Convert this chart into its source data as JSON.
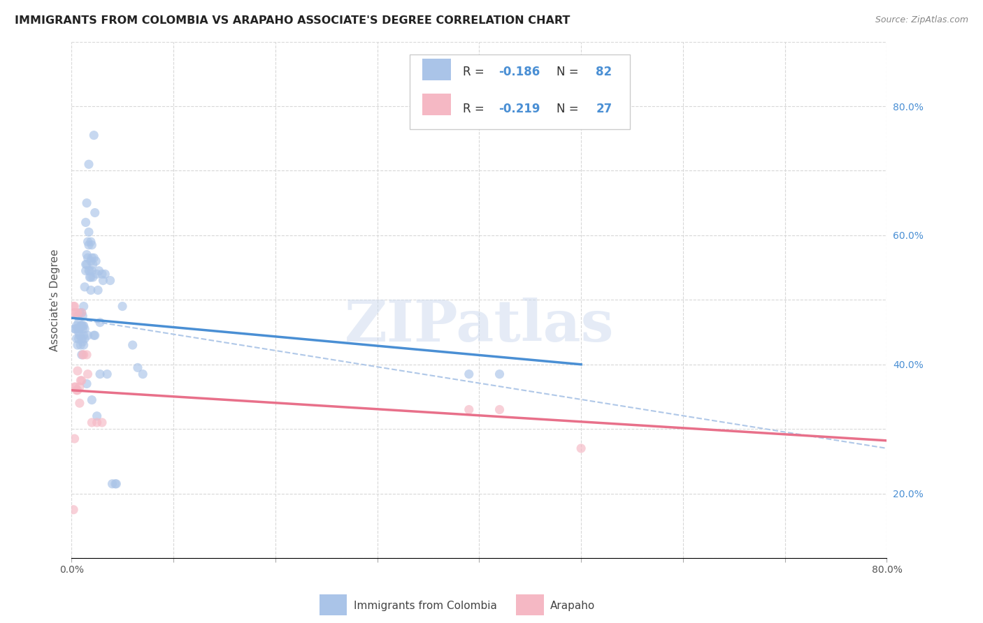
{
  "title": "IMMIGRANTS FROM COLOMBIA VS ARAPAHO ASSOCIATE'S DEGREE CORRELATION CHART",
  "source": "Source: ZipAtlas.com",
  "ylabel": "Associate's Degree",
  "watermark": "ZIPatlas",
  "blue_R": -0.186,
  "blue_N": 82,
  "pink_R": -0.219,
  "pink_N": 27,
  "blue_scatter": [
    [
      0.003,
      0.455
    ],
    [
      0.004,
      0.455
    ],
    [
      0.005,
      0.46
    ],
    [
      0.005,
      0.44
    ],
    [
      0.006,
      0.455
    ],
    [
      0.006,
      0.43
    ],
    [
      0.006,
      0.475
    ],
    [
      0.007,
      0.465
    ],
    [
      0.007,
      0.45
    ],
    [
      0.007,
      0.44
    ],
    [
      0.008,
      0.48
    ],
    [
      0.008,
      0.455
    ],
    [
      0.008,
      0.445
    ],
    [
      0.009,
      0.43
    ],
    [
      0.009,
      0.46
    ],
    [
      0.01,
      0.48
    ],
    [
      0.01,
      0.46
    ],
    [
      0.01,
      0.44
    ],
    [
      0.01,
      0.415
    ],
    [
      0.011,
      0.475
    ],
    [
      0.011,
      0.455
    ],
    [
      0.011,
      0.46
    ],
    [
      0.011,
      0.435
    ],
    [
      0.012,
      0.49
    ],
    [
      0.012,
      0.46
    ],
    [
      0.012,
      0.445
    ],
    [
      0.012,
      0.43
    ],
    [
      0.013,
      0.52
    ],
    [
      0.013,
      0.455
    ],
    [
      0.013,
      0.44
    ],
    [
      0.014,
      0.62
    ],
    [
      0.014,
      0.555
    ],
    [
      0.014,
      0.545
    ],
    [
      0.015,
      0.65
    ],
    [
      0.015,
      0.57
    ],
    [
      0.015,
      0.555
    ],
    [
      0.015,
      0.37
    ],
    [
      0.016,
      0.59
    ],
    [
      0.016,
      0.565
    ],
    [
      0.016,
      0.445
    ],
    [
      0.017,
      0.71
    ],
    [
      0.017,
      0.605
    ],
    [
      0.017,
      0.585
    ],
    [
      0.017,
      0.545
    ],
    [
      0.018,
      0.545
    ],
    [
      0.018,
      0.535
    ],
    [
      0.019,
      0.59
    ],
    [
      0.019,
      0.56
    ],
    [
      0.019,
      0.535
    ],
    [
      0.019,
      0.515
    ],
    [
      0.02,
      0.585
    ],
    [
      0.02,
      0.565
    ],
    [
      0.02,
      0.545
    ],
    [
      0.02,
      0.345
    ],
    [
      0.021,
      0.555
    ],
    [
      0.021,
      0.535
    ],
    [
      0.022,
      0.755
    ],
    [
      0.022,
      0.565
    ],
    [
      0.022,
      0.445
    ],
    [
      0.023,
      0.635
    ],
    [
      0.023,
      0.445
    ],
    [
      0.024,
      0.56
    ],
    [
      0.025,
      0.54
    ],
    [
      0.025,
      0.32
    ],
    [
      0.026,
      0.515
    ],
    [
      0.027,
      0.545
    ],
    [
      0.028,
      0.465
    ],
    [
      0.028,
      0.385
    ],
    [
      0.03,
      0.54
    ],
    [
      0.031,
      0.53
    ],
    [
      0.033,
      0.54
    ],
    [
      0.035,
      0.385
    ],
    [
      0.038,
      0.53
    ],
    [
      0.04,
      0.215
    ],
    [
      0.043,
      0.215
    ],
    [
      0.044,
      0.215
    ],
    [
      0.05,
      0.49
    ],
    [
      0.06,
      0.43
    ],
    [
      0.065,
      0.395
    ],
    [
      0.07,
      0.385
    ],
    [
      0.39,
      0.385
    ],
    [
      0.42,
      0.385
    ]
  ],
  "pink_scatter": [
    [
      0.002,
      0.49
    ],
    [
      0.002,
      0.48
    ],
    [
      0.002,
      0.175
    ],
    [
      0.003,
      0.49
    ],
    [
      0.003,
      0.365
    ],
    [
      0.003,
      0.285
    ],
    [
      0.004,
      0.48
    ],
    [
      0.004,
      0.365
    ],
    [
      0.005,
      0.36
    ],
    [
      0.006,
      0.48
    ],
    [
      0.006,
      0.39
    ],
    [
      0.006,
      0.36
    ],
    [
      0.008,
      0.365
    ],
    [
      0.008,
      0.34
    ],
    [
      0.009,
      0.375
    ],
    [
      0.01,
      0.48
    ],
    [
      0.01,
      0.375
    ],
    [
      0.011,
      0.415
    ],
    [
      0.012,
      0.415
    ],
    [
      0.015,
      0.415
    ],
    [
      0.016,
      0.385
    ],
    [
      0.02,
      0.31
    ],
    [
      0.025,
      0.31
    ],
    [
      0.03,
      0.31
    ],
    [
      0.39,
      0.33
    ],
    [
      0.42,
      0.33
    ],
    [
      0.5,
      0.27
    ]
  ],
  "blue_line": [
    [
      0.0,
      0.472
    ],
    [
      0.5,
      0.4
    ]
  ],
  "pink_line": [
    [
      0.0,
      0.36
    ],
    [
      0.8,
      0.282
    ]
  ],
  "dashed_line": [
    [
      0.0,
      0.472
    ],
    [
      0.8,
      0.27
    ]
  ],
  "xlim": [
    0.0,
    0.8
  ],
  "ylim": [
    0.1,
    0.9
  ],
  "xticks": [
    0.0,
    0.1,
    0.2,
    0.3,
    0.4,
    0.5,
    0.6,
    0.7,
    0.8
  ],
  "yticks": [
    0.1,
    0.2,
    0.3,
    0.4,
    0.5,
    0.6,
    0.7,
    0.8,
    0.9
  ],
  "right_ytick_labels": [
    "",
    "20.0%",
    "",
    "40.0%",
    "",
    "60.0%",
    "",
    "80.0%",
    ""
  ],
  "xtick_labels": [
    "0.0%",
    "",
    "",
    "",
    "",
    "",
    "",
    "",
    "80.0%"
  ],
  "background_color": "#ffffff",
  "grid_color": "#d8d8d8",
  "scatter_size": 90,
  "scatter_alpha": 0.65,
  "blue_scatter_color": "#aac4e8",
  "pink_scatter_color": "#f5b8c4",
  "blue_line_color": "#4a8fd4",
  "pink_line_color": "#e8708a",
  "dashed_line_color": "#b0c8e8",
  "title_fontsize": 11.5,
  "axis_label_fontsize": 11,
  "tick_fontsize": 10,
  "legend_fontsize": 12,
  "source_fontsize": 9,
  "right_tick_color": "#4a8fd4",
  "watermark_color": "#ccd9ee",
  "watermark_alpha": 0.5,
  "watermark_fontsize": 60
}
